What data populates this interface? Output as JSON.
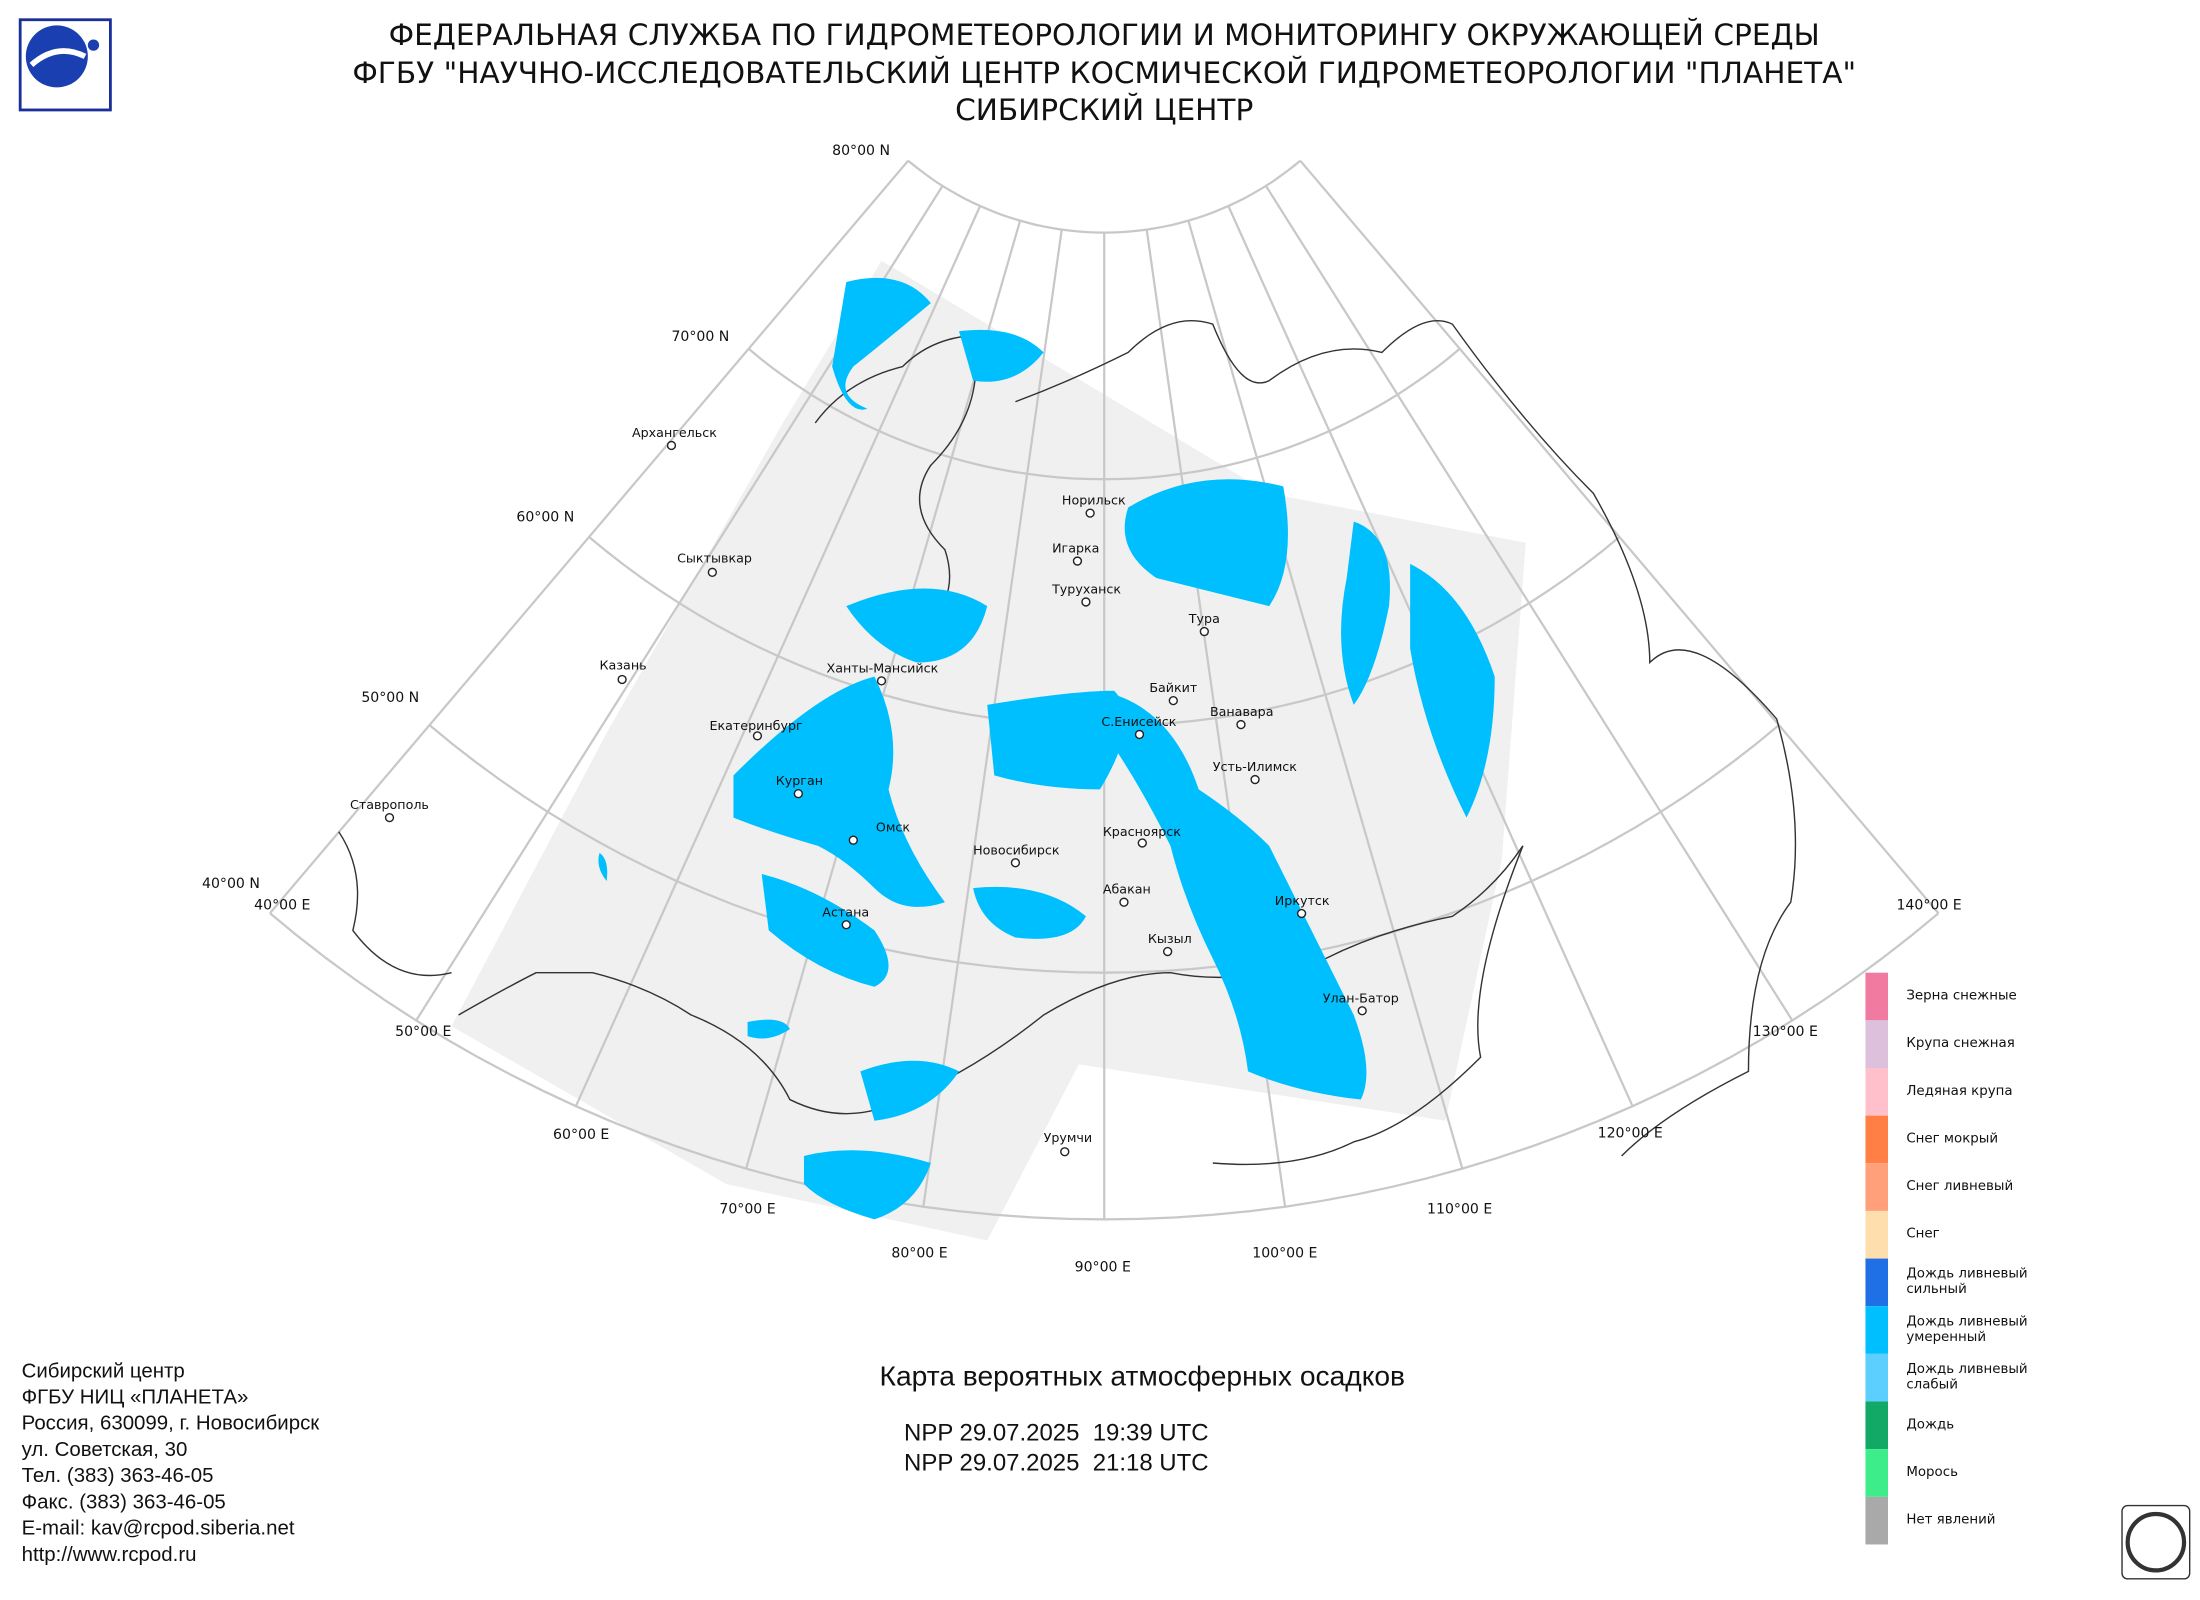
{
  "header": {
    "lines": [
      "ФЕДЕРАЛЬНАЯ СЛУЖБА ПО ГИДРОМЕТЕОРОЛОГИИ И МОНИТОРИНГУ ОКРУЖАЮЩЕЙ СРЕДЫ",
      "ФГБУ \"НАУЧНО-ИССЛЕДОВАТЕЛЬСКИЙ ЦЕНТР КОСМИЧЕСКОЙ ГИДРОМЕТЕОРОЛОГИИ \"ПЛАНЕТА\"",
      "СИБИРСКИЙ ЦЕНТР"
    ]
  },
  "map": {
    "lat_labels": [
      "80°00 N",
      "70°00 N",
      "60°00 N",
      "50°00 N",
      "40°00 N"
    ],
    "lon_labels": [
      "40°00 E",
      "50°00 E",
      "60°00 E",
      "70°00 E",
      "80°00 E",
      "90°00 E",
      "100°00 E",
      "110°00 E",
      "120°00 E",
      "130°00 E",
      "140°00 E"
    ],
    "cities": [
      "Архангельск",
      "Сыктывкар",
      "Казань",
      "Екатеринбург",
      "Ставрополь",
      "Ханты-Мансийск",
      "Курган",
      "Омск",
      "Астана",
      "Новосибирск",
      "Норильск",
      "Игарка",
      "Туруханск",
      "Тура",
      "Байкит",
      "С.Енисейск",
      "Ванавара",
      "Усть-Илимск",
      "Красноярск",
      "Абакан",
      "Кызыл",
      "Иркутск",
      "Улан-Батор",
      "Урумчи"
    ]
  },
  "legend": [
    {
      "label": [
        "Зерна снежные"
      ],
      "color": "#f07aa0"
    },
    {
      "label": [
        "Крупа снежная"
      ],
      "color": "#dcc0dc"
    },
    {
      "label": [
        "Ледяная крупа"
      ],
      "color": "#ffc0cb"
    },
    {
      "label": [
        "Снег мокрый"
      ],
      "color": "#ff7f45"
    },
    {
      "label": [
        "Снег ливневый"
      ],
      "color": "#ffa07a"
    },
    {
      "label": [
        "Снег"
      ],
      "color": "#ffdead"
    },
    {
      "label": [
        "Дождь ливневый",
        "сильный"
      ],
      "color": "#1f6fe6"
    },
    {
      "label": [
        "Дождь ливневый",
        "умеренный"
      ],
      "color": "#00bfff"
    },
    {
      "label": [
        "Дождь ливневый",
        "слабый"
      ],
      "color": "#5ccfff"
    },
    {
      "label": [
        "Дождь"
      ],
      "color": "#12a866"
    },
    {
      "label": [
        "Морось"
      ],
      "color": "#3ced8a"
    },
    {
      "label": [
        "Нет явлений"
      ],
      "color": "#a9a9a9"
    }
  ],
  "footer": {
    "address": [
      "Сибирский центр",
      "ФГБУ НИЦ «ПЛАНЕТА»",
      "Россия, 630099, г. Новосибирск",
      "ул. Советская, 30",
      "Тел. (383) 363-46-05",
      "Факс. (383) 363-46-05",
      "E-mail: kav@rcpod.siberia.net",
      "http://www.rcpod.ru"
    ],
    "title": "Карта вероятных атмосферных осадков",
    "passes": [
      "NPP 29.07.2025  19:39 UTC",
      "NPP 29.07.2025  21:18 UTC"
    ]
  }
}
